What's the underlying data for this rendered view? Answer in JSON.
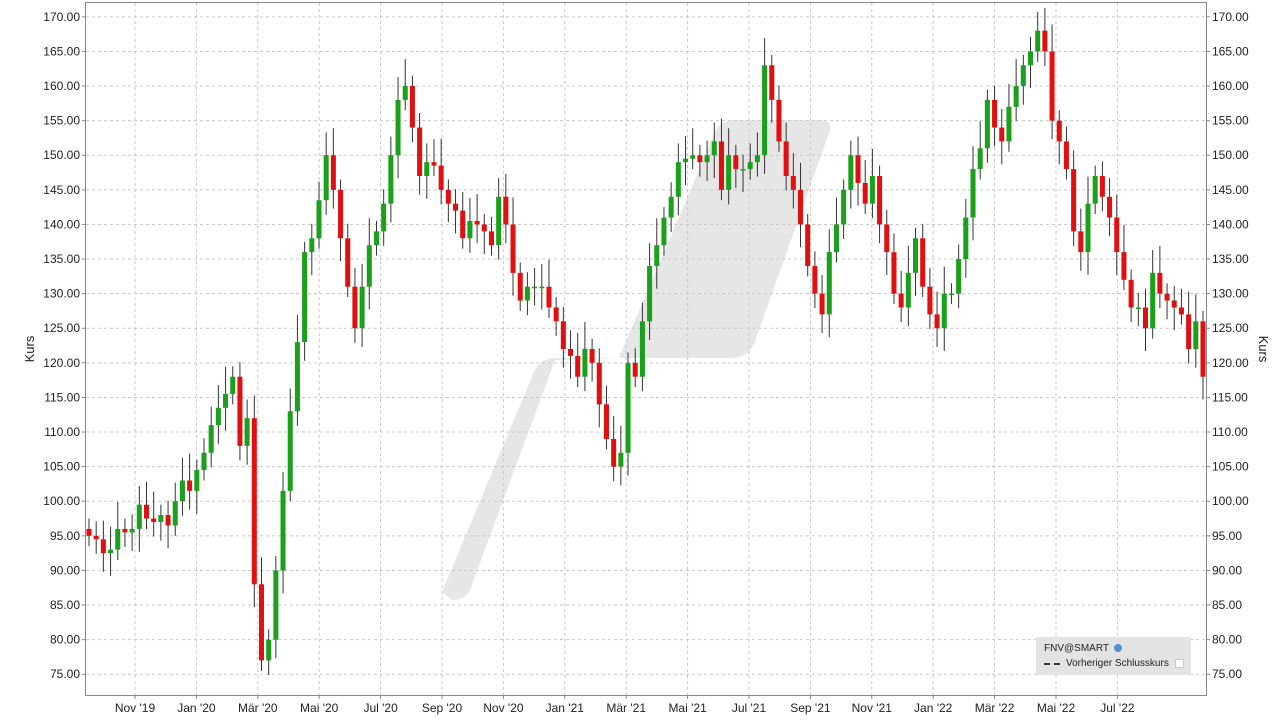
{
  "chart_data": {
    "type": "candlestick",
    "ylabel": "Kurs",
    "ylim": [
      72,
      172
    ],
    "yticks": [
      "75.00",
      "80.00",
      "85.00",
      "90.00",
      "95.00",
      "100.00",
      "105.00",
      "110.00",
      "115.00",
      "120.00",
      "125.00",
      "130.00",
      "135.00",
      "140.00",
      "145.00",
      "150.00",
      "155.00",
      "160.00",
      "165.00",
      "170.00"
    ],
    "xticks": [
      "Nov '19",
      "Jan '20",
      "Mär '20",
      "Mai '20",
      "Jul '20",
      "Sep '20",
      "Nov '20",
      "Jan '21",
      "Mär '21",
      "Mai '21",
      "Jul '21",
      "Sep '21",
      "Nov '21",
      "Jan '22",
      "Mär '22",
      "Mai '22",
      "Jul '22"
    ],
    "grid": true,
    "colors": {
      "up": "#1aa01a",
      "down": "#e01010",
      "grid": "#c8c8c8"
    },
    "closes": [
      95,
      94.5,
      92.5,
      93,
      96,
      95.5,
      96,
      99.5,
      97.5,
      97,
      98,
      96.5,
      100,
      103,
      101.5,
      104.5,
      107,
      111,
      113.5,
      115.5,
      118,
      108,
      112,
      88,
      77,
      80,
      90,
      101.5,
      113,
      123,
      136,
      138,
      143.5,
      150,
      145,
      138,
      131,
      125,
      131,
      137,
      139,
      143,
      150,
      158,
      160,
      154,
      147,
      149,
      148.5,
      145,
      143,
      142,
      138,
      140.5,
      140,
      139,
      137,
      144,
      140,
      133,
      129,
      131,
      131,
      131,
      128,
      126,
      122,
      121,
      118,
      122,
      120,
      114,
      109,
      105,
      107,
      120,
      118,
      126,
      134,
      137,
      141,
      144,
      149,
      149.5,
      150,
      149,
      150,
      152,
      145,
      150,
      148,
      148,
      149,
      150,
      163,
      158,
      152,
      147,
      145,
      140,
      134,
      130,
      127,
      136,
      140,
      145,
      150,
      146,
      143,
      147,
      140,
      136,
      130,
      128,
      133,
      138,
      131,
      127,
      125,
      130,
      130,
      135,
      141,
      148,
      151,
      158,
      154,
      152,
      157,
      160,
      163,
      165,
      168,
      165,
      155,
      152,
      148,
      139,
      136,
      143,
      147,
      144,
      141,
      136,
      132,
      128,
      128,
      125,
      133,
      130,
      129,
      128,
      127,
      122,
      126,
      118
    ]
  },
  "legend": {
    "instrument": "FNV@SMART",
    "previous_close": "Vorheriger Schlusskurs"
  }
}
